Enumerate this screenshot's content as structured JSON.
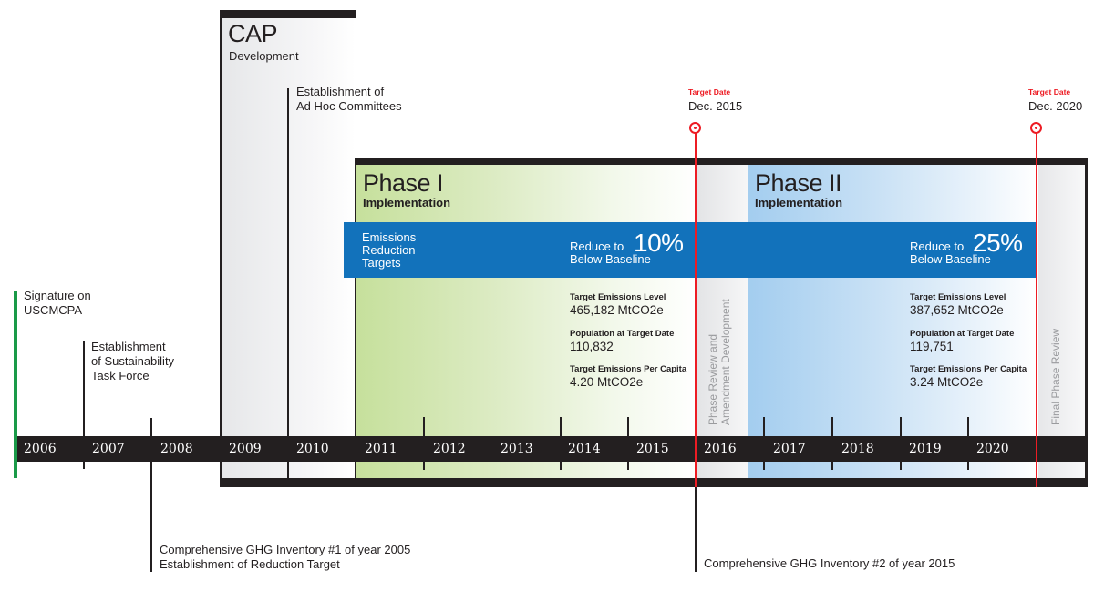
{
  "colors": {
    "timeline_bar": "#231f20",
    "band_blue": "#1272bb",
    "target_red": "#ed1c24",
    "start_green": "#1a9a48",
    "phase1_green": "#c6e09c",
    "phase2_blue": "#a3cdef"
  },
  "cap": {
    "title": "CAP",
    "subtitle": "Development"
  },
  "phase1": {
    "title": "Phase I",
    "subtitle": "Implementation"
  },
  "phase2": {
    "title": "Phase II",
    "subtitle": "Implementation"
  },
  "band": {
    "label_lines": [
      "Emissions",
      "Reduction",
      "Targets"
    ],
    "phase1_target": {
      "prefix": "Reduce to",
      "percent": "10%",
      "suffix": "Below Baseline"
    },
    "phase2_target": {
      "prefix": "Reduce to",
      "percent": "25%",
      "suffix": "Below Baseline"
    }
  },
  "phase1_stats": [
    {
      "label": "Target Emissions Level",
      "value": "465,182 MtCO2e"
    },
    {
      "label": "Population at Target Date",
      "value": "110,832"
    },
    {
      "label": "Target Emissions Per Capita",
      "value": "4.20 MtCO2e"
    }
  ],
  "phase2_stats": [
    {
      "label": "Target Emissions Level",
      "value": "387,652 MtCO2e"
    },
    {
      "label": "Population at Target Date",
      "value": "119,751"
    },
    {
      "label": "Target Emissions Per Capita",
      "value": "3.24 MtCO2e"
    }
  ],
  "review_columns": {
    "phase_review_lines": [
      "Phase Review and",
      "Amendment Development"
    ],
    "final_review": "Final Phase Review"
  },
  "timeline": {
    "years": [
      "2006",
      "2007",
      "2008",
      "2009",
      "2010",
      "2011",
      "2012",
      "2013",
      "2014",
      "2015",
      "2016",
      "2017",
      "2018",
      "2019",
      "2020"
    ]
  },
  "events": {
    "signature": [
      "Signature on",
      "USCMCPA"
    ],
    "task_force": [
      "Establishment",
      "of Sustainability",
      "Task Force"
    ],
    "ad_hoc": [
      "Establishment of",
      "Ad Hoc Committees"
    ],
    "inventory1": [
      "Comprehensive GHG Inventory #1 of year 2005",
      "Establishment of Reduction Target"
    ],
    "inventory2": [
      "Comprehensive GHG Inventory #2 of year 2015"
    ]
  },
  "targets": [
    {
      "label": "Target Date",
      "date": "Dec. 2015",
      "icon": "target-icon"
    },
    {
      "label": "Target Date",
      "date": "Dec. 2020",
      "icon": "target-icon"
    }
  ]
}
